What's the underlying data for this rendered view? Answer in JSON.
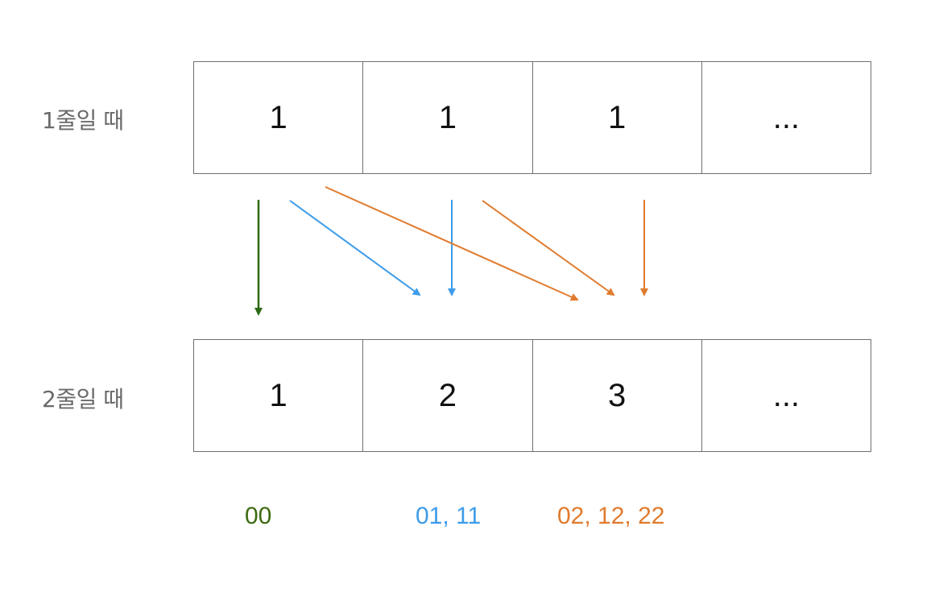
{
  "rows": [
    {
      "label": "1줄일 때",
      "cells": [
        "1",
        "1",
        "1",
        "..."
      ]
    },
    {
      "label": "2줄일 때",
      "cells": [
        "1",
        "2",
        "3",
        "..."
      ]
    }
  ],
  "legend": {
    "green": {
      "text": "00",
      "color": "#3e6b12"
    },
    "blue": {
      "text": "01, 11",
      "color": "#3d9ce9"
    },
    "orange": {
      "text": "02, 12, 22",
      "color": "#e07b2e"
    }
  },
  "colors": {
    "arrow_green": "#2c6a14",
    "arrow_blue": "#3d9ce9",
    "arrow_orange": "#e07b2e",
    "border": "#6f6f6f"
  }
}
